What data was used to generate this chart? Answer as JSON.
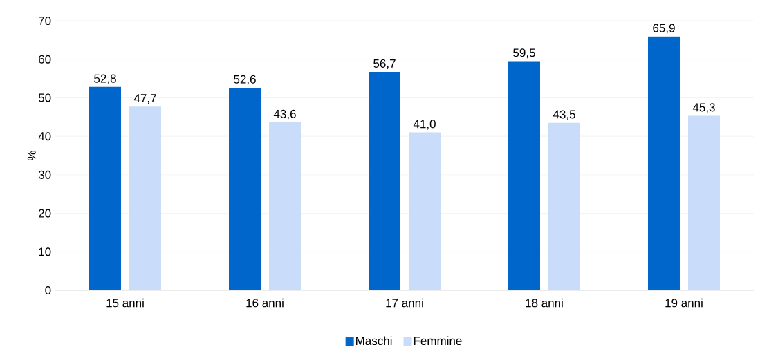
{
  "chart_data": {
    "type": "bar",
    "ylabel": "%",
    "categories": [
      "15 anni",
      "16 anni",
      "17 anni",
      "18 anni",
      "19 anni"
    ],
    "series": [
      {
        "name": "Maschi",
        "color": "#0066cc",
        "values": [
          52.8,
          52.6,
          56.7,
          59.5,
          65.9
        ],
        "value_labels": [
          "52,8",
          "52,6",
          "56,7",
          "59,5",
          "65,9"
        ]
      },
      {
        "name": "Femmine",
        "color": "#c9dcfa",
        "values": [
          47.7,
          43.6,
          41.0,
          43.5,
          45.3
        ],
        "value_labels": [
          "47,7",
          "43,6",
          "41,0",
          "43,5",
          "45,3"
        ]
      }
    ],
    "ylim": [
      0,
      70
    ],
    "yticks": [
      0,
      10,
      20,
      30,
      40,
      50,
      60,
      70
    ],
    "grid": "y",
    "legend": "bottom"
  }
}
